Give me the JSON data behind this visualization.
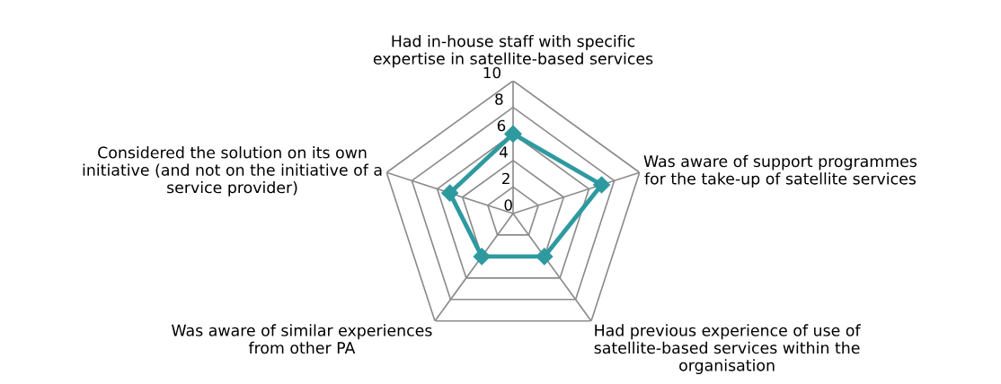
{
  "chart_data": {
    "type": "radar",
    "categories": [
      "Had in-house staff with specific\nexpertise in satellite-based services",
      "Was aware of support programmes\nfor the take-up of satellite services",
      "Had previous experience of use of\nsatellite-based services within the\norganisation",
      "Was aware of similar experiences\nfrom other PA",
      "Considered the solution on its own\ninitiative (and not on the initiative of a\nservice provider)"
    ],
    "series": [
      {
        "color": "#2e9aa0",
        "values": [
          6,
          7,
          4,
          4,
          5
        ]
      }
    ],
    "ylim": [
      0,
      10
    ],
    "yticks": [
      0,
      2,
      4,
      6,
      8,
      10
    ],
    "grid": true,
    "marker": "diamond",
    "line_style": "solid"
  }
}
